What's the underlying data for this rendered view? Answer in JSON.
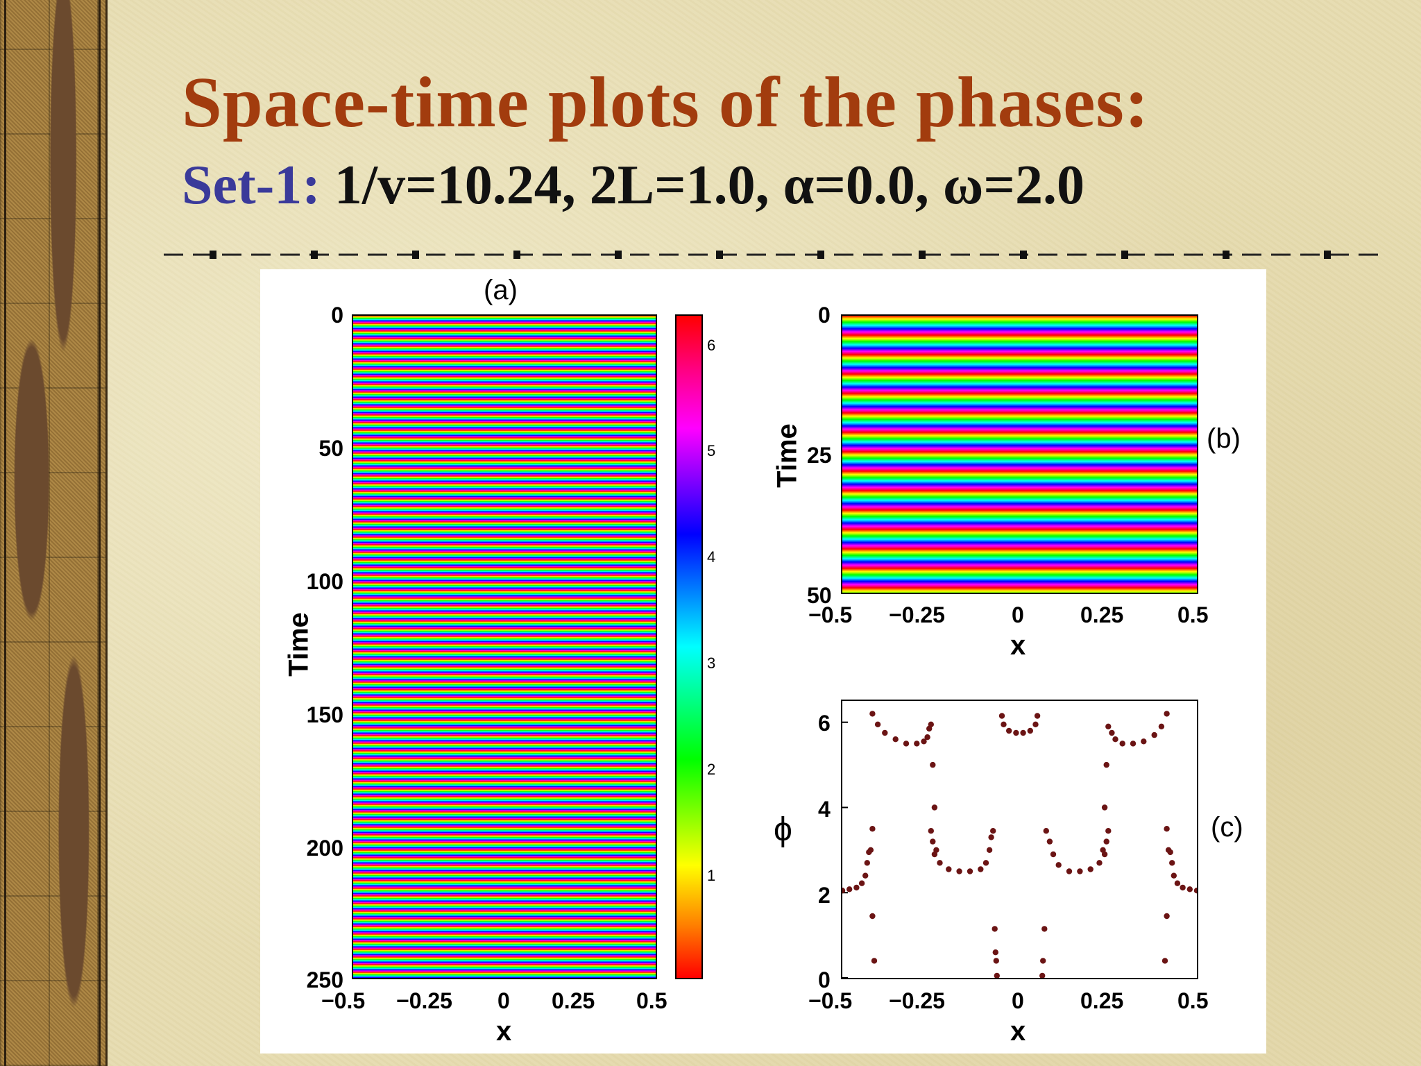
{
  "slide": {
    "title": "Space-time plots of the phases:",
    "set_label": "Set-1:",
    "params": "1/v=10.24, 2L=1.0, α=0.0, ω=2.0"
  },
  "colors": {
    "title": "#a23c0e",
    "set_label": "#3a3a9a"
  },
  "figure": {
    "panel_a": {
      "label": "(a)",
      "xlabel": "x",
      "ylabel": "Time",
      "xticks": [
        "−0.5",
        "−0.25",
        "0",
        "0.25",
        "0.5"
      ],
      "yticks": [
        "0",
        "50",
        "100",
        "150",
        "200",
        "250"
      ],
      "colorbar_ticks": [
        "6",
        "5",
        "4",
        "3",
        "2",
        "1"
      ]
    },
    "panel_b": {
      "label": "(b)",
      "xlabel": "x",
      "ylabel": "Time",
      "xticks": [
        "−0.5",
        "−0.25",
        "0",
        "0.25",
        "0.5"
      ],
      "yticks": [
        "0",
        "25",
        "50"
      ]
    },
    "panel_c": {
      "label": "(c)",
      "xlabel": "x",
      "ylabel": "ϕ",
      "xticks": [
        "−0.5",
        "−0.25",
        "0",
        "0.25",
        "0.5"
      ],
      "yticks": [
        "0",
        "2",
        "4",
        "6"
      ]
    }
  },
  "chart_data": [
    {
      "type": "heatmap",
      "panel": "(a)",
      "xlabel": "x",
      "ylabel": "Time",
      "xlim": [
        -0.5,
        0.5
      ],
      "ylim": [
        0,
        250
      ],
      "colorbar": {
        "min": 0,
        "max": 6.28,
        "ticks": [
          1,
          2,
          3,
          4,
          5,
          6
        ],
        "colormap": "hsv"
      }
    },
    {
      "type": "heatmap",
      "panel": "(b)",
      "xlabel": "x",
      "ylabel": "Time",
      "xlim": [
        -0.5,
        0.5
      ],
      "ylim": [
        0,
        50
      ]
    },
    {
      "type": "scatter",
      "panel": "(c)",
      "xlabel": "x",
      "ylabel": "ϕ",
      "xlim": [
        -0.5,
        0.5
      ],
      "ylim": [
        0,
        6.5
      ],
      "marker_color": "#6b1414",
      "points": [
        [
          -0.5,
          2.05
        ],
        [
          -0.48,
          2.08
        ],
        [
          -0.46,
          2.12
        ],
        [
          -0.445,
          2.22
        ],
        [
          -0.435,
          2.4
        ],
        [
          -0.43,
          2.7
        ],
        [
          -0.425,
          2.95
        ],
        [
          -0.42,
          3.0
        ],
        [
          -0.415,
          3.5
        ],
        [
          -0.415,
          1.45
        ],
        [
          -0.41,
          0.4
        ],
        [
          -0.415,
          6.2
        ],
        [
          -0.4,
          5.95
        ],
        [
          -0.38,
          5.75
        ],
        [
          -0.35,
          5.6
        ],
        [
          -0.32,
          5.5
        ],
        [
          -0.29,
          5.5
        ],
        [
          -0.27,
          5.55
        ],
        [
          -0.26,
          5.65
        ],
        [
          -0.255,
          5.85
        ],
        [
          -0.25,
          5.95
        ],
        [
          -0.245,
          5.0
        ],
        [
          -0.24,
          4.0
        ],
        [
          -0.235,
          3.0
        ],
        [
          -0.25,
          3.45
        ],
        [
          -0.245,
          3.2
        ],
        [
          -0.24,
          2.9
        ],
        [
          -0.225,
          2.7
        ],
        [
          -0.2,
          2.55
        ],
        [
          -0.17,
          2.5
        ],
        [
          -0.14,
          2.5
        ],
        [
          -0.11,
          2.55
        ],
        [
          -0.095,
          2.7
        ],
        [
          -0.085,
          3.0
        ],
        [
          -0.08,
          3.3
        ],
        [
          -0.075,
          3.45
        ],
        [
          -0.07,
          1.15
        ],
        [
          -0.068,
          0.6
        ],
        [
          -0.066,
          0.4
        ],
        [
          -0.064,
          0.05
        ],
        [
          -0.05,
          6.15
        ],
        [
          -0.045,
          5.95
        ],
        [
          -0.03,
          5.8
        ],
        [
          -0.01,
          5.75
        ],
        [
          0.01,
          5.75
        ],
        [
          0.03,
          5.8
        ],
        [
          0.045,
          5.95
        ],
        [
          0.05,
          6.15
        ],
        [
          0.064,
          0.05
        ],
        [
          0.066,
          0.4
        ],
        [
          0.07,
          1.15
        ],
        [
          0.075,
          3.45
        ],
        [
          0.085,
          3.2
        ],
        [
          0.095,
          2.9
        ],
        [
          0.11,
          2.65
        ],
        [
          0.14,
          2.5
        ],
        [
          0.17,
          2.5
        ],
        [
          0.2,
          2.55
        ],
        [
          0.225,
          2.7
        ],
        [
          0.24,
          2.9
        ],
        [
          0.245,
          3.2
        ],
        [
          0.25,
          3.45
        ],
        [
          0.235,
          3.0
        ],
        [
          0.24,
          4.0
        ],
        [
          0.245,
          5.0
        ],
        [
          0.25,
          5.9
        ],
        [
          0.26,
          5.75
        ],
        [
          0.27,
          5.6
        ],
        [
          0.29,
          5.5
        ],
        [
          0.32,
          5.5
        ],
        [
          0.35,
          5.55
        ],
        [
          0.38,
          5.7
        ],
        [
          0.4,
          5.9
        ],
        [
          0.415,
          6.2
        ],
        [
          0.41,
          0.4
        ],
        [
          0.415,
          1.45
        ],
        [
          0.415,
          3.5
        ],
        [
          0.42,
          3.0
        ],
        [
          0.425,
          2.95
        ],
        [
          0.43,
          2.7
        ],
        [
          0.435,
          2.4
        ],
        [
          0.445,
          2.22
        ],
        [
          0.46,
          2.12
        ],
        [
          0.48,
          2.08
        ],
        [
          0.5,
          2.05
        ]
      ]
    }
  ]
}
